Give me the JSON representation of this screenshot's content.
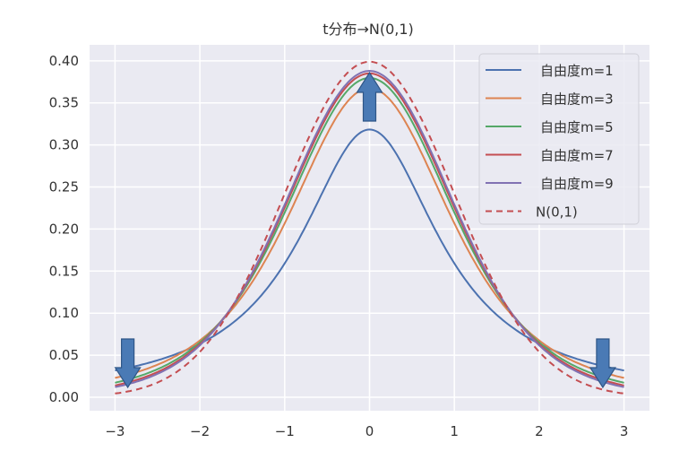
{
  "chart_data": {
    "type": "line",
    "title": "t分布→N(0,1)",
    "xlabel": "",
    "ylabel": "",
    "xlim": [
      -3.3,
      3.3
    ],
    "ylim": [
      -0.016,
      0.419
    ],
    "grid": true,
    "legend_position": "top-right",
    "x_ticks": [
      -3,
      -2,
      -1,
      0,
      1,
      2,
      3
    ],
    "x_tick_labels": [
      "−3",
      "−2",
      "−1",
      "0",
      "1",
      "2",
      "3"
    ],
    "y_ticks": [
      0.0,
      0.05,
      0.1,
      0.15,
      0.2,
      0.25,
      0.3,
      0.35,
      0.4
    ],
    "y_tick_labels": [
      "0.00",
      "0.05",
      "0.10",
      "0.15",
      "0.20",
      "0.25",
      "0.30",
      "0.35",
      "0.40"
    ],
    "x_range": [
      -3,
      3
    ],
    "series": [
      {
        "name": "自由度m=1",
        "distribution": "t",
        "df": 1,
        "color": "#4c72b0",
        "dash": false
      },
      {
        "name": "自由度m=3",
        "distribution": "t",
        "df": 3,
        "color": "#dd8452",
        "dash": false
      },
      {
        "name": "自由度m=5",
        "distribution": "t",
        "df": 5,
        "color": "#55a868",
        "dash": false
      },
      {
        "name": "自由度m=7",
        "distribution": "t",
        "df": 7,
        "color": "#c44e52",
        "dash": false
      },
      {
        "name": "自由度m=9",
        "distribution": "t",
        "df": 9,
        "color": "#8172b3",
        "dash": false
      },
      {
        "name": "N(0,1)",
        "distribution": "normal",
        "df": null,
        "color": "#c44e52",
        "dash": true
      }
    ],
    "annotations": [
      {
        "type": "arrow",
        "direction": "down",
        "at_x": -2.85,
        "color": "#4a7ab5"
      },
      {
        "type": "arrow",
        "direction": "up",
        "at_x": 0,
        "color": "#4a7ab5"
      },
      {
        "type": "arrow",
        "direction": "down",
        "at_x": 2.75,
        "color": "#4a7ab5"
      }
    ]
  }
}
